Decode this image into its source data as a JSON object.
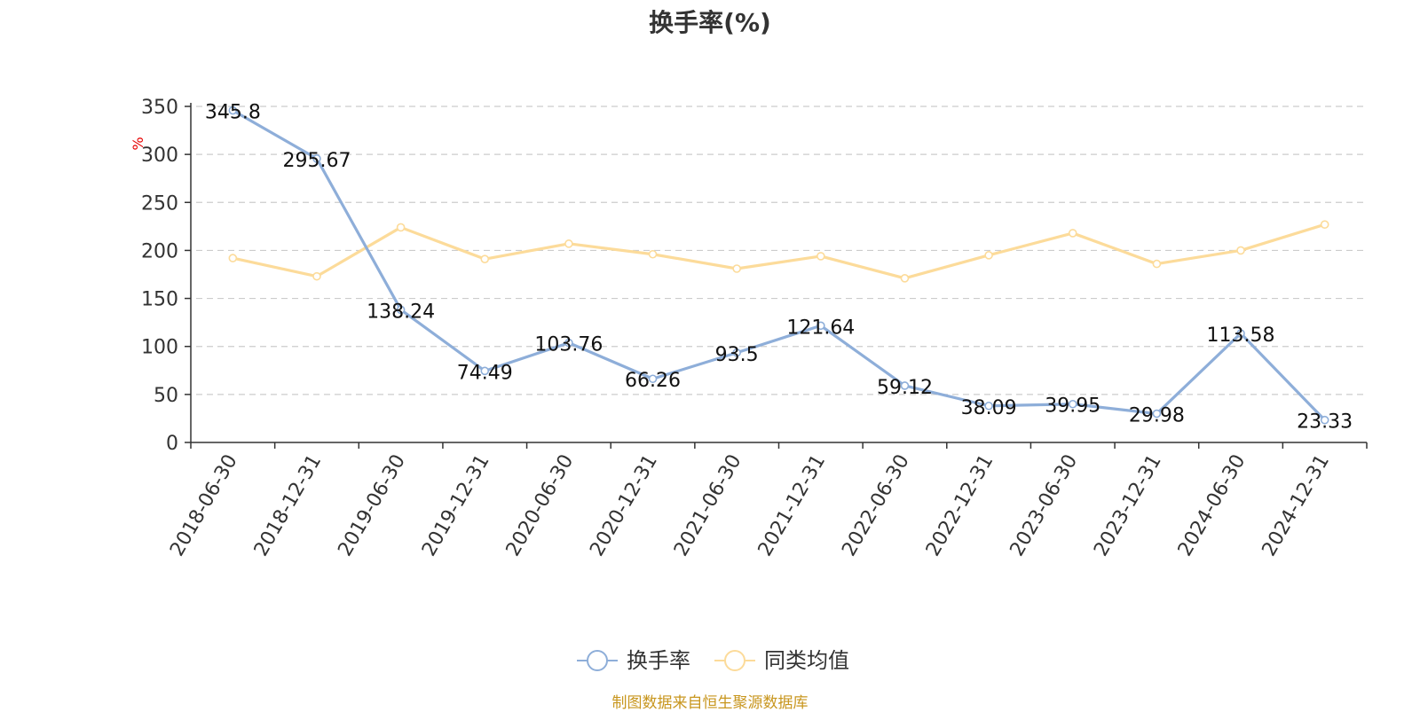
{
  "chart_data": {
    "type": "line",
    "title": "换手率(%)",
    "ylabel": "%",
    "xlabel": "",
    "ylim": [
      0,
      350
    ],
    "yticks": [
      0,
      50,
      100,
      150,
      200,
      250,
      300,
      350
    ],
    "grid": true,
    "categories": [
      "2018-06-30",
      "2018-12-31",
      "2019-06-30",
      "2019-12-31",
      "2020-06-30",
      "2020-12-31",
      "2021-06-30",
      "2021-12-31",
      "2022-06-30",
      "2022-12-31",
      "2023-06-30",
      "2023-12-31",
      "2024-06-30",
      "2024-12-31"
    ],
    "series": [
      {
        "name": "换手率",
        "color": "#8eaed9",
        "values": [
          345.8,
          295.67,
          138.24,
          74.49,
          103.76,
          66.26,
          93.5,
          121.64,
          59.12,
          38.09,
          39.95,
          29.98,
          113.58,
          23.33
        ],
        "labels": [
          "345.8",
          "295.67",
          "138.24",
          "74.49",
          "103.76",
          "66.26",
          "93.5",
          "121.64",
          "59.12",
          "38.09",
          "39.95",
          "29.98",
          "113.58",
          "23.33"
        ],
        "show_labels": true
      },
      {
        "name": "同类均值",
        "color": "#fcdb9a",
        "values": [
          192,
          173,
          224,
          191,
          207,
          196,
          181,
          194,
          171,
          195,
          218,
          186,
          200,
          227
        ],
        "show_labels": false
      }
    ],
    "legend_position": "bottom-center"
  },
  "footer": {
    "source": "制图数据来自恒生聚源数据库"
  }
}
